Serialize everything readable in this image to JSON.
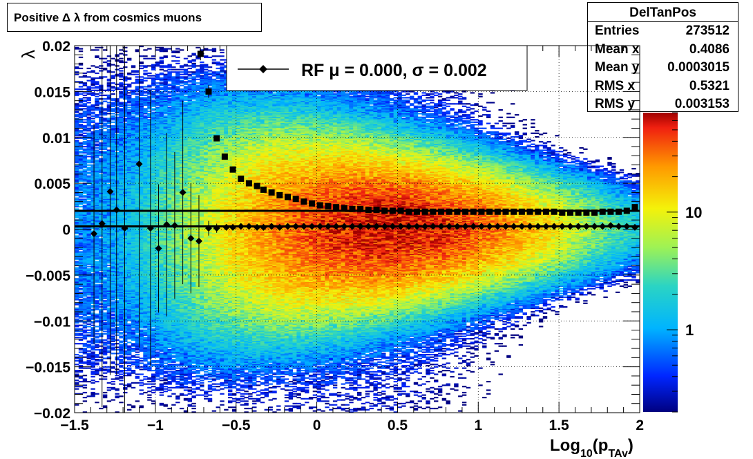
{
  "title": "Positive Δ λ from cosmics muons",
  "stats": {
    "name": "DelTanPos",
    "rows": [
      {
        "label": "Entries",
        "value": "273512"
      },
      {
        "label": "Mean x",
        "value": "0.4086"
      },
      {
        "label": "Mean y",
        "value": "0.0003015"
      },
      {
        "label": "RMS x",
        "value": "0.5321"
      },
      {
        "label": "RMS y",
        "value": "0.003153"
      }
    ]
  },
  "legend": {
    "entry": "RF μ =  0.000, σ =   0.002"
  },
  "colorbar": {
    "scale": "log",
    "range": [
      0.2,
      70
    ],
    "tick_labels": [
      "1",
      "10"
    ],
    "tick_values": [
      1,
      10
    ]
  },
  "chart_data": {
    "type": "heatmap",
    "title": "Positive Δ λ from cosmics muons",
    "xlabel": "Log",
    "xlabel_sub": "10",
    "xlabel_paren": "(p",
    "xlabel_sub2": "TAv",
    "xlabel_close": ")",
    "ylabel": "λ",
    "xlim": [
      -1.5,
      2
    ],
    "ylim": [
      -0.02,
      0.02
    ],
    "x_ticks": [
      -1.5,
      -1,
      -0.5,
      0,
      0.5,
      1,
      1.5,
      2
    ],
    "x_tick_labels": [
      "−1.5",
      "−1",
      "−0.5",
      "0",
      "0.5",
      "1",
      "1.5",
      "2"
    ],
    "y_ticks": [
      -0.02,
      -0.015,
      -0.01,
      -0.005,
      0,
      0.005,
      0.01,
      0.015,
      0.02
    ],
    "y_tick_labels": [
      "−0.02",
      "−0.015",
      "−0.01",
      "−0.005",
      "0",
      "0.005",
      "0.01",
      "0.015",
      "0.02"
    ],
    "grid": true,
    "mean_line_y": 0.0003,
    "sigma_line_y": 0.002,
    "mean_series": {
      "x": [
        -1.38,
        -1.33,
        -1.28,
        -1.24,
        -1.19,
        -1.1,
        -1.03,
        -0.98,
        -0.93,
        -0.88,
        -0.83,
        -0.78,
        -0.73,
        -0.67,
        -0.62,
        -0.56,
        -0.52,
        -0.47,
        -0.42,
        -0.37,
        -0.33,
        -0.28,
        -0.23,
        -0.18,
        -0.13,
        -0.08,
        -0.03,
        0.02,
        0.07,
        0.12,
        0.17,
        0.22,
        0.27,
        0.32,
        0.37,
        0.42,
        0.47,
        0.52,
        0.57,
        0.62,
        0.67,
        0.72,
        0.77,
        0.82,
        0.87,
        0.92,
        0.97,
        1.02,
        1.07,
        1.12,
        1.17,
        1.22,
        1.27,
        1.32,
        1.37,
        1.42,
        1.47,
        1.52,
        1.57,
        1.62,
        1.67,
        1.72,
        1.77,
        1.82,
        1.87,
        1.92,
        1.97
      ],
      "y": [
        -0.0005,
        0.0006,
        0.0041,
        0.0021,
        0.0001,
        0.0071,
        0.0001,
        -0.0021,
        0.0005,
        0.0004,
        0.004,
        -0.001,
        -0.0013,
        0.0001,
        0.0001,
        0.0002,
        0.0002,
        0.0003,
        0.0003,
        0.0002,
        0.0002,
        0.0003,
        0.0002,
        0.0003,
        0.0003,
        0.0003,
        0.0003,
        0.0003,
        0.0003,
        0.0003,
        0.0003,
        0.0003,
        0.0003,
        0.0003,
        0.0003,
        0.0003,
        0.0003,
        0.0003,
        0.0003,
        0.0003,
        0.0003,
        0.0003,
        0.0003,
        0.0003,
        0.0003,
        0.0003,
        0.0003,
        0.0003,
        0.0003,
        0.0003,
        0.0003,
        0.0003,
        0.0003,
        0.0003,
        0.0003,
        0.0003,
        0.0003,
        0.0003,
        0.0003,
        0.0003,
        0.0003,
        0.0003,
        0.0003,
        0.0004,
        0.0003,
        0.0003,
        0.0002
      ],
      "yerr": [
        0.012,
        0.02,
        0.02,
        0.018,
        0.022,
        0.02,
        0.015,
        0.007,
        0.01,
        0.008,
        0.01,
        0.006,
        0.005,
        0.0008,
        0.0005,
        0.0003,
        0.0003,
        0.0002,
        0.0002,
        0.0002,
        0.0001,
        0.0001,
        0.0001,
        0.0001,
        0.0001,
        0.0001,
        0.0001,
        0.0001,
        0.0001,
        0.0001,
        0.0001,
        0.0001,
        0.0001,
        0.0001,
        0.0001,
        0.0001,
        0.0001,
        0.0001,
        0.0001,
        0.0001,
        0.0001,
        0.0001,
        0.0001,
        0.0001,
        0.0001,
        0.0001,
        0.0001,
        0.0001,
        0.0001,
        0.0001,
        0.0001,
        0.0001,
        0.0001,
        0.0001,
        0.0001,
        0.0001,
        0.0001,
        0.0001,
        0.0001,
        0.0001,
        0.0001,
        0.0001,
        0.0001,
        0.0001,
        0.0001,
        0.0001,
        0.0001
      ]
    },
    "sigma_series": {
      "x": [
        -0.72,
        -0.67,
        -0.62,
        -0.57,
        -0.52,
        -0.47,
        -0.42,
        -0.37,
        -0.33,
        -0.28,
        -0.23,
        -0.18,
        -0.13,
        -0.08,
        -0.03,
        0.02,
        0.07,
        0.12,
        0.17,
        0.22,
        0.27,
        0.32,
        0.37,
        0.42,
        0.47,
        0.52,
        0.57,
        0.62,
        0.67,
        0.72,
        0.77,
        0.82,
        0.87,
        0.92,
        0.97,
        1.02,
        1.07,
        1.12,
        1.17,
        1.22,
        1.27,
        1.32,
        1.37,
        1.42,
        1.47,
        1.52,
        1.57,
        1.62,
        1.67,
        1.72,
        1.77,
        1.82,
        1.87,
        1.92,
        1.97
      ],
      "y": [
        0.0191,
        0.015,
        0.0099,
        0.0079,
        0.0065,
        0.0055,
        0.005,
        0.0047,
        0.0043,
        0.004,
        0.0037,
        0.0035,
        0.0033,
        0.003,
        0.0028,
        0.0026,
        0.0025,
        0.0024,
        0.0023,
        0.0022,
        0.0022,
        0.0021,
        0.0021,
        0.002,
        0.002,
        0.002,
        0.0019,
        0.0019,
        0.0019,
        0.0019,
        0.0019,
        0.0019,
        0.0019,
        0.0019,
        0.0019,
        0.0019,
        0.0019,
        0.0019,
        0.0019,
        0.0019,
        0.0019,
        0.0019,
        0.0019,
        0.0019,
        0.0019,
        0.0018,
        0.0018,
        0.0018,
        0.0018,
        0.0018,
        0.0019,
        0.0019,
        0.0019,
        0.002,
        0.0024
      ],
      "yerr": [
        0.0007,
        0.0007,
        0.0003,
        0.0002,
        0.0001,
        0.0001,
        0.0001,
        0.0001,
        0.0001,
        0.0001,
        0.0001,
        0.0001,
        0.0001,
        0.0001,
        0.0001,
        0.0001,
        0.0001,
        0.0001,
        0.0001,
        0.0001,
        0.0001,
        0.0001,
        0.0001,
        0.0001,
        0.0001,
        0.0001,
        0.0001,
        0.0001,
        0.0001,
        0.0001,
        0.0001,
        0.0001,
        0.0001,
        0.0001,
        0.0001,
        0.0001,
        0.0001,
        0.0001,
        0.0001,
        0.0001,
        0.0001,
        0.0001,
        0.0001,
        0.0001,
        0.0001,
        0.0001,
        0.0001,
        0.0001,
        0.0001,
        0.0001,
        0.0001,
        0.0001,
        0.0001,
        0.0001,
        0.0001
      ]
    },
    "density_model": {
      "peak_count": 60,
      "peak_x": 0.45,
      "x_spread": 0.55,
      "y_center": 0.0002,
      "y_width_at_low_x": 0.009,
      "y_width_at_high_x": 0.0022
    }
  }
}
